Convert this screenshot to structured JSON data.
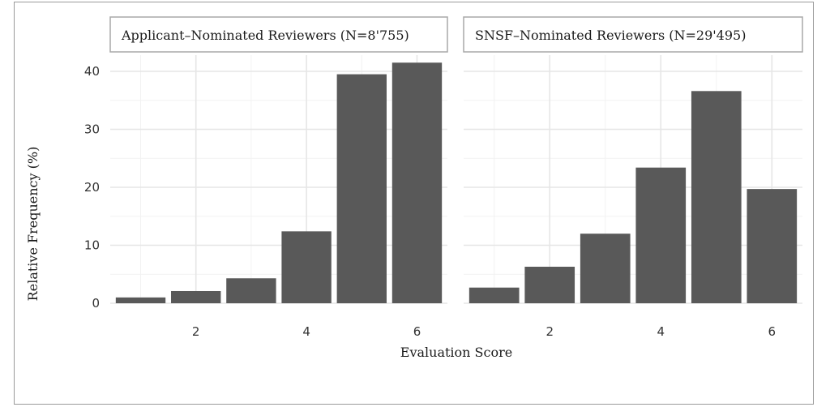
{
  "chart_data": {
    "type": "bar",
    "xlabel": "Evaluation Score",
    "ylabel": "Relative Frequency (%)",
    "ylim": [
      0,
      44
    ],
    "xlim": [
      0.45,
      6.55
    ],
    "y_ticks": [
      0,
      10,
      20,
      30,
      40
    ],
    "x_ticks": [
      2,
      4,
      6
    ],
    "grid": true,
    "panels": [
      {
        "title": "Applicant–Nominated Reviewers (N=8'755)",
        "x": [
          1,
          2,
          3,
          4,
          5,
          6
        ],
        "values": [
          1.0,
          2.1,
          4.3,
          12.4,
          39.5,
          41.5
        ]
      },
      {
        "title": "SNSF–Nominated Reviewers (N=29'495)",
        "x": [
          1,
          2,
          3,
          4,
          5,
          6
        ],
        "values": [
          2.7,
          6.3,
          12.0,
          23.4,
          36.6,
          19.7
        ]
      }
    ],
    "colors": {
      "bar": "#595959",
      "grid_major": "#e6e6e6",
      "grid_minor": "#f2f2f2",
      "strip_border": "#a8a8a8"
    }
  }
}
